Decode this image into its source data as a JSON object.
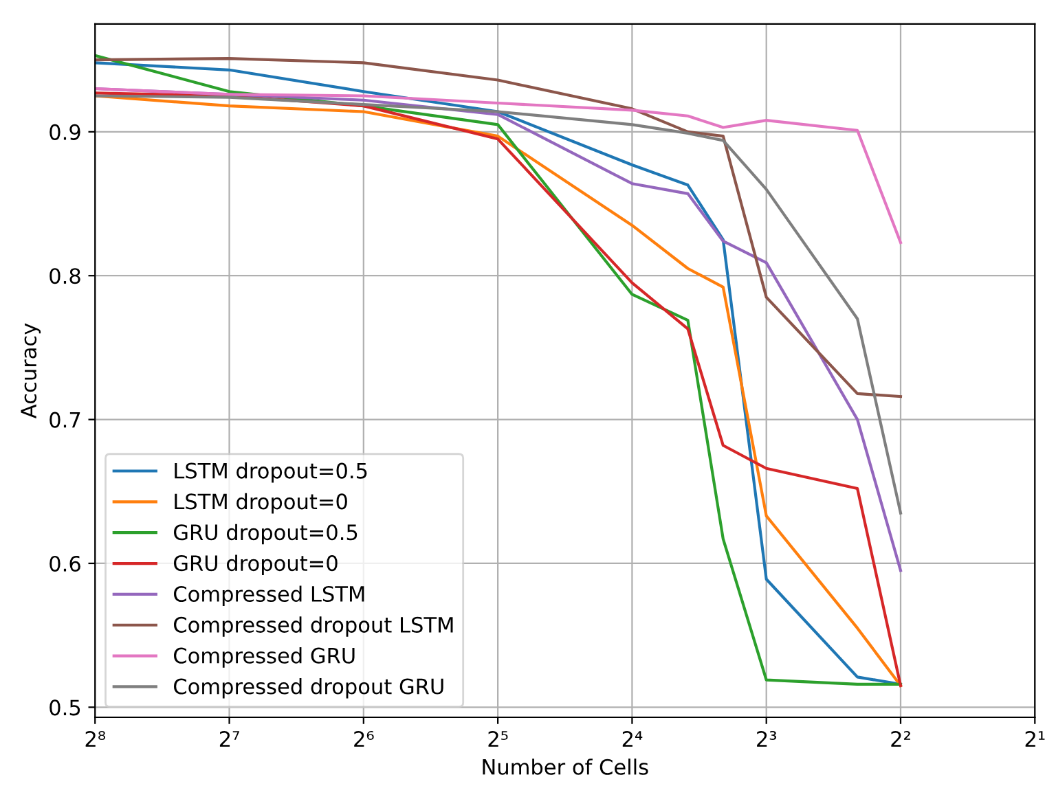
{
  "chart_data": {
    "type": "line",
    "xlabel": "Number of Cells",
    "ylabel": "Accuracy",
    "log": "x",
    "grid": true,
    "legend": "bottom left",
    "marker": "none",
    "line_style": "solid",
    "x": [
      256,
      128,
      64,
      32,
      16,
      12,
      10,
      8,
      5,
      4
    ],
    "xlim": [
      256,
      2
    ],
    "xticks": [
      {
        "value": 256,
        "label": "2⁸"
      },
      {
        "value": 128,
        "label": "2⁷"
      },
      {
        "value": 64,
        "label": "2⁶"
      },
      {
        "value": 32,
        "label": "2⁵"
      },
      {
        "value": 16,
        "label": "2⁴"
      },
      {
        "value": 8,
        "label": "2³"
      },
      {
        "value": 4,
        "label": "2²"
      },
      {
        "value": 2,
        "label": "2¹"
      }
    ],
    "ylim": [
      0.493,
      0.975
    ],
    "yticks": [
      {
        "value": 0.5,
        "label": "0.5"
      },
      {
        "value": 0.6,
        "label": "0.6"
      },
      {
        "value": 0.7,
        "label": "0.7"
      },
      {
        "value": 0.8,
        "label": "0.8"
      },
      {
        "value": 0.9,
        "label": "0.9"
      }
    ],
    "series": [
      {
        "name": "LSTM dropout=0.5",
        "color": "#1f77b4",
        "values": [
          0.948,
          0.943,
          0.928,
          0.914,
          0.877,
          0.863,
          0.825,
          0.589,
          0.521,
          0.516
        ]
      },
      {
        "name": "LSTM dropout=0",
        "color": "#ff7f0e",
        "values": [
          0.925,
          0.918,
          0.914,
          0.897,
          0.835,
          0.805,
          0.792,
          0.633,
          0.555,
          0.515
        ]
      },
      {
        "name": "GRU dropout=0.5",
        "color": "#2ca02c",
        "values": [
          0.953,
          0.928,
          0.918,
          0.905,
          0.787,
          0.769,
          0.617,
          0.519,
          0.516,
          0.516
        ]
      },
      {
        "name": "GRU dropout=0",
        "color": "#d62728",
        "values": [
          0.927,
          0.925,
          0.918,
          0.895,
          0.795,
          0.763,
          0.682,
          0.666,
          0.652,
          0.515
        ]
      },
      {
        "name": "Compressed LSTM",
        "color": "#9467bd",
        "values": [
          0.93,
          0.926,
          0.922,
          0.912,
          0.864,
          0.857,
          0.824,
          0.809,
          0.7,
          0.595
        ]
      },
      {
        "name": "Compressed dropout LSTM",
        "color": "#8c564b",
        "values": [
          0.95,
          0.951,
          0.948,
          0.936,
          0.916,
          0.9,
          0.897,
          0.785,
          0.718,
          0.716
        ]
      },
      {
        "name": "Compressed GRU",
        "color": "#e377c2",
        "values": [
          0.93,
          0.926,
          0.925,
          0.92,
          0.915,
          0.911,
          0.903,
          0.908,
          0.901,
          0.823
        ]
      },
      {
        "name": "Compressed dropout GRU",
        "color": "#7f7f7f",
        "values": [
          0.925,
          0.924,
          0.919,
          0.914,
          0.905,
          0.899,
          0.894,
          0.86,
          0.77,
          0.635
        ]
      }
    ]
  }
}
